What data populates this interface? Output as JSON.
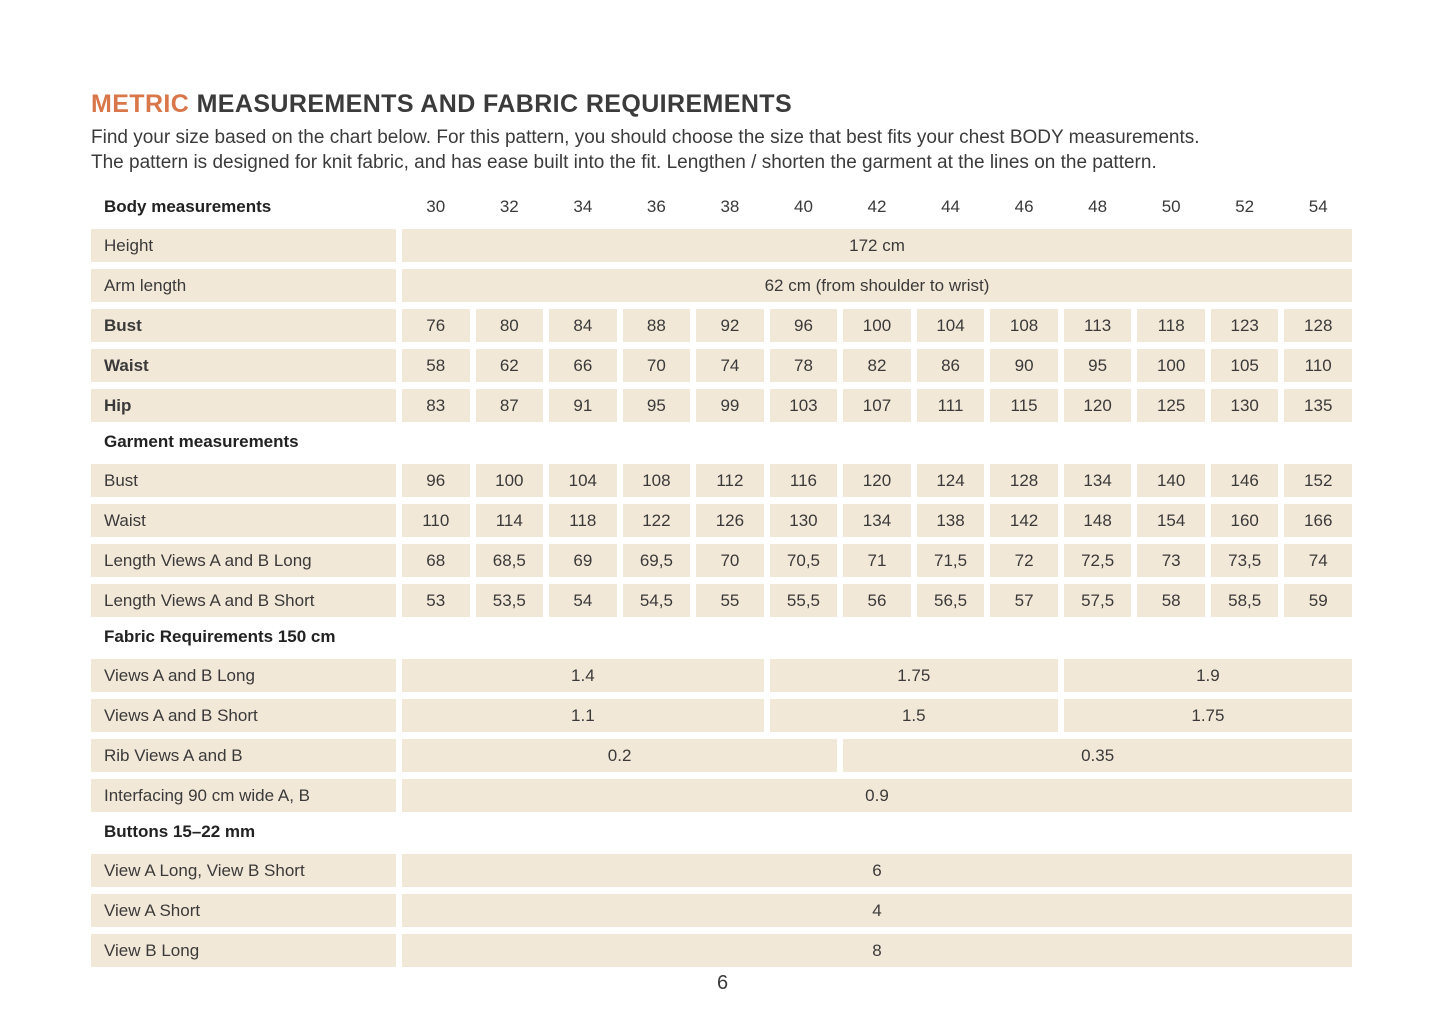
{
  "page": {
    "title_highlight": "METRIC",
    "title_rest": " MEASUREMENTS AND FABRIC REQUIREMENTS",
    "intro_line1": "Find your size based on the chart below. For this pattern, you should choose the size that best fits your chest BODY measurements.",
    "intro_line2": "The pattern is designed for knit fabric, and has ease built into the fit. Lengthen / shorten the garment at the lines on the pattern.",
    "page_number": "6"
  },
  "colors": {
    "accent_orange": "#d9764a",
    "cell_beige": "#f2e8d8",
    "text_dark": "#3a3a3a"
  },
  "table": {
    "header": {
      "label": "Body measurements",
      "sizes": [
        "30",
        "32",
        "34",
        "36",
        "38",
        "40",
        "42",
        "44",
        "46",
        "48",
        "50",
        "52",
        "54"
      ]
    },
    "body": {
      "height": {
        "label": "Height",
        "value": "172 cm"
      },
      "arm": {
        "label": "Arm length",
        "value": "62 cm (from shoulder to wrist)"
      },
      "bust": {
        "label": "Bust",
        "values": [
          "76",
          "80",
          "84",
          "88",
          "92",
          "96",
          "100",
          "104",
          "108",
          "113",
          "118",
          "123",
          "128"
        ]
      },
      "waist": {
        "label": "Waist",
        "values": [
          "58",
          "62",
          "66",
          "70",
          "74",
          "78",
          "82",
          "86",
          "90",
          "95",
          "100",
          "105",
          "110"
        ]
      },
      "hip": {
        "label": "Hip",
        "values": [
          "83",
          "87",
          "91",
          "95",
          "99",
          "103",
          "107",
          "111",
          "115",
          "120",
          "125",
          "130",
          "135"
        ]
      }
    },
    "garment": {
      "header": "Garment measurements",
      "bust": {
        "label": "Bust",
        "values": [
          "96",
          "100",
          "104",
          "108",
          "112",
          "116",
          "120",
          "124",
          "128",
          "134",
          "140",
          "146",
          "152"
        ]
      },
      "waist": {
        "label": "Waist",
        "values": [
          "110",
          "114",
          "118",
          "122",
          "126",
          "130",
          "134",
          "138",
          "142",
          "148",
          "154",
          "160",
          "166"
        ]
      },
      "length_long": {
        "label": "Length Views A and B Long",
        "values": [
          "68",
          "68,5",
          "69",
          "69,5",
          "70",
          "70,5",
          "71",
          "71,5",
          "72",
          "72,5",
          "73",
          "73,5",
          "74"
        ]
      },
      "length_short": {
        "label": "Length Views A and B Short",
        "values": [
          "53",
          "53,5",
          "54",
          "54,5",
          "55",
          "55,5",
          "56",
          "56,5",
          "57",
          "57,5",
          "58",
          "58,5",
          "59"
        ]
      }
    },
    "fabric": {
      "header": "Fabric Requirements 150 cm",
      "views_long": {
        "label": "Views A and B Long",
        "values": [
          "1.4",
          "1.75",
          "1.9"
        ]
      },
      "views_short": {
        "label": "Views A and B Short",
        "values": [
          "1.1",
          "1.5",
          "1.75"
        ]
      },
      "rib": {
        "label": "Rib Views A and B",
        "values": [
          "0.2",
          "0.35"
        ]
      },
      "interfacing": {
        "label": "Interfacing 90 cm wide A, B",
        "value": "0.9"
      }
    },
    "buttons": {
      "header": "Buttons 15–22 mm",
      "row1": {
        "label": "View A Long, View B Short",
        "value": "6"
      },
      "row2": {
        "label": "View A Short",
        "value": "4"
      },
      "row3": {
        "label": "View B Long",
        "value": "8"
      }
    }
  }
}
